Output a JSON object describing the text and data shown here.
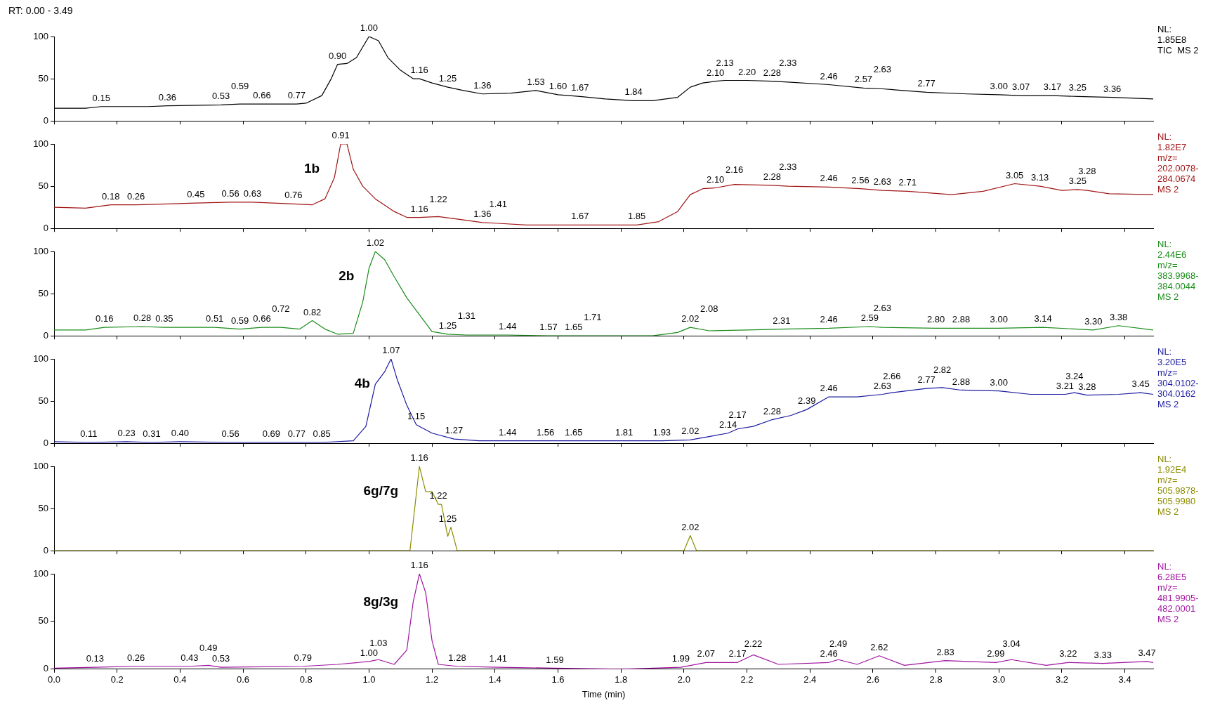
{
  "chart_data": [
    {
      "type": "line",
      "title": "RT: 0.00 - 3.49",
      "xlim": [
        0,
        3.49
      ],
      "xticks": [
        0,
        0.2,
        0.4,
        0.6,
        0.8,
        1,
        1.2,
        1.4,
        1.6,
        1.8,
        2,
        2.2,
        2.4,
        2.6,
        2.8,
        3,
        3.2,
        3.4
      ],
      "ylim": [
        0,
        100
      ],
      "yticks": [
        0,
        50,
        100
      ],
      "tick_labels": "y",
      "x": [
        0,
        0.1,
        0.15,
        0.3,
        0.36,
        0.53,
        0.59,
        0.66,
        0.77,
        0.8,
        0.85,
        0.88,
        0.9,
        0.93,
        0.96,
        1.0,
        1.03,
        1.06,
        1.1,
        1.14,
        1.16,
        1.2,
        1.25,
        1.3,
        1.36,
        1.45,
        1.53,
        1.6,
        1.67,
        1.75,
        1.84,
        1.9,
        1.98,
        2.02,
        2.06,
        2.1,
        2.13,
        2.2,
        2.28,
        2.33,
        2.46,
        2.57,
        2.63,
        2.77,
        2.9,
        3.0,
        3.07,
        3.17,
        3.25,
        3.36,
        3.49
      ],
      "series": [
        {
          "color": "#000000",
          "values": [
            15,
            15,
            17,
            17,
            18,
            19,
            20,
            20,
            20,
            21,
            30,
            50,
            67,
            68,
            75,
            100,
            95,
            75,
            60,
            50,
            50,
            45,
            40,
            36,
            32,
            33,
            36,
            31,
            29,
            26,
            24,
            24,
            28,
            40,
            45,
            47,
            48,
            48,
            47,
            46,
            43,
            39,
            38,
            34,
            32,
            31,
            30,
            30,
            29,
            28,
            26
          ]
        }
      ],
      "annotations": [
        "NL:",
        "1.85E8",
        "TIC  MS 2",
        {
          "text": "0.15",
          "x": 0.15,
          "y": 17
        },
        {
          "text": "0.36",
          "x": 0.36,
          "y": 18
        },
        {
          "text": "0.53",
          "x": 0.53,
          "y": 19
        },
        {
          "text": "0.59",
          "x": 0.59,
          "y": 20
        },
        {
          "text": "0.66",
          "x": 0.66,
          "y": 20
        },
        {
          "text": "0.77",
          "x": 0.77,
          "y": 20
        },
        {
          "text": "0.90",
          "x": 0.9,
          "y": 67
        },
        {
          "text": "1.00",
          "x": 1.0,
          "y": 100
        },
        {
          "text": "1.16",
          "x": 1.16,
          "y": 50
        },
        {
          "text": "1.25",
          "x": 1.25,
          "y": 40
        },
        {
          "text": "1.36",
          "x": 1.36,
          "y": 32
        },
        {
          "text": "1.53",
          "x": 1.53,
          "y": 36
        },
        {
          "text": "1.60",
          "x": 1.6,
          "y": 31
        },
        {
          "text": "1.67",
          "x": 1.67,
          "y": 29
        },
        {
          "text": "1.84",
          "x": 1.84,
          "y": 24
        },
        {
          "text": "2.10",
          "x": 2.1,
          "y": 47
        },
        {
          "text": "2.13",
          "x": 2.13,
          "y": 48
        },
        {
          "text": "2.20",
          "x": 2.2,
          "y": 48
        },
        {
          "text": "2.28",
          "x": 2.28,
          "y": 47
        },
        {
          "text": "2.33",
          "x": 2.33,
          "y": 46
        },
        {
          "text": "2.46",
          "x": 2.46,
          "y": 43
        },
        {
          "text": "2.57",
          "x": 2.57,
          "y": 39
        },
        {
          "text": "2.63",
          "x": 2.63,
          "y": 38
        },
        {
          "text": "2.77",
          "x": 2.77,
          "y": 34
        },
        {
          "text": "3.00",
          "x": 3.0,
          "y": 31
        },
        {
          "text": "3.07",
          "x": 3.07,
          "y": 30
        },
        {
          "text": "3.17",
          "x": 3.17,
          "y": 30
        },
        {
          "text": "3.25",
          "x": 3.25,
          "y": 29
        },
        {
          "text": "3.36",
          "x": 3.36,
          "y": 28
        }
      ]
    },
    {
      "type": "line",
      "xlim": [
        0,
        3.49
      ],
      "xticks": [
        0,
        0.2,
        0.4,
        0.6,
        0.8,
        1,
        1.2,
        1.4,
        1.6,
        1.8,
        2,
        2.2,
        2.4,
        2.6,
        2.8,
        3,
        3.2,
        3.4
      ],
      "ylim": [
        0,
        100
      ],
      "yticks": [
        0,
        50,
        100
      ],
      "tick_labels": "y",
      "x": [
        0,
        0.1,
        0.18,
        0.26,
        0.45,
        0.56,
        0.63,
        0.76,
        0.82,
        0.86,
        0.89,
        0.91,
        0.93,
        0.95,
        0.98,
        1.02,
        1.08,
        1.12,
        1.16,
        1.22,
        1.3,
        1.36,
        1.41,
        1.5,
        1.67,
        1.85,
        1.92,
        1.98,
        2.02,
        2.06,
        2.1,
        2.16,
        2.28,
        2.33,
        2.46,
        2.56,
        2.63,
        2.71,
        2.85,
        2.95,
        3.05,
        3.13,
        3.2,
        3.25,
        3.28,
        3.35,
        3.49
      ],
      "series": [
        {
          "name": "1b",
          "color": "#a01414",
          "values": [
            25,
            24,
            28,
            28,
            30,
            31,
            31,
            29,
            28,
            35,
            60,
            100,
            100,
            70,
            50,
            35,
            20,
            13,
            13,
            14,
            10,
            7,
            6,
            4,
            4,
            4,
            8,
            20,
            40,
            47,
            48,
            52,
            51,
            50,
            49,
            47,
            45,
            44,
            40,
            44,
            53,
            50,
            45,
            46,
            45,
            41,
            40
          ]
        }
      ],
      "annotations": [
        "NL:",
        "1.82E7",
        "m/z=",
        "202.0078-",
        "284.0674",
        "MS 2",
        {
          "text": "0.18",
          "x": 0.18,
          "y": 28
        },
        {
          "text": "0.26",
          "x": 0.26,
          "y": 28
        },
        {
          "text": "0.45",
          "x": 0.45,
          "y": 30
        },
        {
          "text": "0.56",
          "x": 0.56,
          "y": 31
        },
        {
          "text": "0.63",
          "x": 0.63,
          "y": 31
        },
        {
          "text": "0.76",
          "x": 0.76,
          "y": 29
        },
        {
          "text": "0.91",
          "x": 0.91,
          "y": 100
        },
        {
          "text": "1.16",
          "x": 1.16,
          "y": 13
        },
        {
          "text": "1.22",
          "x": 1.22,
          "y": 14
        },
        {
          "text": "1.36",
          "x": 1.36,
          "y": 7
        },
        {
          "text": "1.41",
          "x": 1.41,
          "y": 6
        },
        {
          "text": "1.67",
          "x": 1.67,
          "y": 4
        },
        {
          "text": "1.85",
          "x": 1.85,
          "y": 4
        },
        {
          "text": "2.10",
          "x": 2.1,
          "y": 48
        },
        {
          "text": "2.16",
          "x": 2.16,
          "y": 52
        },
        {
          "text": "2.28",
          "x": 2.28,
          "y": 51
        },
        {
          "text": "2.33",
          "x": 2.33,
          "y": 50
        },
        {
          "text": "2.46",
          "x": 2.46,
          "y": 49
        },
        {
          "text": "2.56",
          "x": 2.56,
          "y": 47
        },
        {
          "text": "2.63",
          "x": 2.63,
          "y": 45
        },
        {
          "text": "2.71",
          "x": 2.71,
          "y": 44
        },
        {
          "text": "3.05",
          "x": 3.05,
          "y": 53
        },
        {
          "text": "3.13",
          "x": 3.13,
          "y": 50
        },
        {
          "text": "3.25",
          "x": 3.25,
          "y": 46
        },
        {
          "text": "3.28",
          "x": 3.28,
          "y": 45
        }
      ]
    },
    {
      "type": "line",
      "xlim": [
        0,
        3.49
      ],
      "xticks": [
        0,
        0.2,
        0.4,
        0.6,
        0.8,
        1,
        1.2,
        1.4,
        1.6,
        1.8,
        2,
        2.2,
        2.4,
        2.6,
        2.8,
        3,
        3.2,
        3.4
      ],
      "ylim": [
        0,
        100
      ],
      "yticks": [
        0,
        50,
        100
      ],
      "tick_labels": "y",
      "x": [
        0,
        0.1,
        0.16,
        0.28,
        0.35,
        0.51,
        0.59,
        0.66,
        0.72,
        0.78,
        0.82,
        0.86,
        0.9,
        0.95,
        0.98,
        1.0,
        1.02,
        1.05,
        1.08,
        1.12,
        1.16,
        1.2,
        1.25,
        1.31,
        1.44,
        1.57,
        1.65,
        1.71,
        1.9,
        1.98,
        2.02,
        2.08,
        2.2,
        2.31,
        2.46,
        2.59,
        2.63,
        2.8,
        2.88,
        3.0,
        3.14,
        3.3,
        3.38,
        3.49
      ],
      "series": [
        {
          "name": "2b",
          "color": "#1a8c1a",
          "values": [
            7,
            7,
            10,
            11,
            10,
            10,
            8,
            10,
            10,
            8,
            18,
            8,
            2,
            3,
            40,
            80,
            100,
            90,
            70,
            45,
            25,
            5,
            2,
            1,
            1,
            0,
            0,
            0,
            0,
            4,
            10,
            6,
            7,
            8,
            9,
            11,
            10,
            9,
            9,
            9,
            10,
            7,
            12,
            7
          ]
        }
      ],
      "annotations": [
        "NL:",
        "2.44E6",
        "m/z=",
        "383.9968-",
        "384.0044",
        "MS 2",
        {
          "text": "0.16",
          "x": 0.16,
          "y": 10
        },
        {
          "text": "0.28",
          "x": 0.28,
          "y": 11
        },
        {
          "text": "0.35",
          "x": 0.35,
          "y": 10
        },
        {
          "text": "0.51",
          "x": 0.51,
          "y": 10
        },
        {
          "text": "0.59",
          "x": 0.59,
          "y": 8
        },
        {
          "text": "0.66",
          "x": 0.66,
          "y": 10
        },
        {
          "text": "0.72",
          "x": 0.72,
          "y": 10
        },
        {
          "text": "0.82",
          "x": 0.82,
          "y": 18
        },
        {
          "text": "1.02",
          "x": 1.02,
          "y": 100
        },
        {
          "text": "1.25",
          "x": 1.25,
          "y": 2
        },
        {
          "text": "1.31",
          "x": 1.31,
          "y": 1
        },
        {
          "text": "1.44",
          "x": 1.44,
          "y": 1
        },
        {
          "text": "1.57",
          "x": 1.57,
          "y": 0
        },
        {
          "text": "1.65",
          "x": 1.65,
          "y": 0
        },
        {
          "text": "1.71",
          "x": 1.71,
          "y": 0
        },
        {
          "text": "2.02",
          "x": 2.02,
          "y": 10
        },
        {
          "text": "2.08",
          "x": 2.08,
          "y": 6
        },
        {
          "text": "2.31",
          "x": 2.31,
          "y": 8
        },
        {
          "text": "2.46",
          "x": 2.46,
          "y": 9
        },
        {
          "text": "2.59",
          "x": 2.59,
          "y": 11
        },
        {
          "text": "2.63",
          "x": 2.63,
          "y": 10
        },
        {
          "text": "2.80",
          "x": 2.8,
          "y": 9
        },
        {
          "text": "2.88",
          "x": 2.88,
          "y": 9
        },
        {
          "text": "3.00",
          "x": 3.0,
          "y": 9
        },
        {
          "text": "3.14",
          "x": 3.14,
          "y": 10
        },
        {
          "text": "3.30",
          "x": 3.3,
          "y": 7
        },
        {
          "text": "3.38",
          "x": 3.38,
          "y": 12
        }
      ]
    },
    {
      "type": "line",
      "xlim": [
        0,
        3.49
      ],
      "xticks": [
        0,
        0.2,
        0.4,
        0.6,
        0.8,
        1,
        1.2,
        1.4,
        1.6,
        1.8,
        2,
        2.2,
        2.4,
        2.6,
        2.8,
        3,
        3.2,
        3.4
      ],
      "ylim": [
        0,
        100
      ],
      "yticks": [
        0,
        50,
        100
      ],
      "tick_labels": "y",
      "x": [
        0,
        0.11,
        0.23,
        0.31,
        0.4,
        0.56,
        0.69,
        0.77,
        0.85,
        0.95,
        0.99,
        1.02,
        1.05,
        1.07,
        1.09,
        1.12,
        1.15,
        1.2,
        1.27,
        1.35,
        1.44,
        1.56,
        1.65,
        1.81,
        1.93,
        2.02,
        2.08,
        2.14,
        2.17,
        2.22,
        2.28,
        2.34,
        2.39,
        2.46,
        2.55,
        2.63,
        2.66,
        2.77,
        2.82,
        2.88,
        3.0,
        3.1,
        3.21,
        3.24,
        3.28,
        3.38,
        3.45,
        3.49
      ],
      "series": [
        {
          "name": "4b",
          "color": "#1a1aa0",
          "values": [
            2,
            1,
            2,
            1,
            2,
            1,
            1,
            1,
            1,
            3,
            20,
            70,
            85,
            100,
            75,
            45,
            22,
            12,
            5,
            3,
            3,
            3,
            3,
            3,
            3,
            4,
            8,
            12,
            17,
            20,
            28,
            33,
            40,
            55,
            55,
            58,
            60,
            65,
            66,
            63,
            62,
            58,
            58,
            60,
            57,
            58,
            60,
            58
          ]
        }
      ],
      "annotations": [
        "NL:",
        "3.20E5",
        "m/z=",
        "304.0102-",
        "304.0162",
        "MS 2",
        {
          "text": "0.11",
          "x": 0.11,
          "y": 1
        },
        {
          "text": "0.23",
          "x": 0.23,
          "y": 2
        },
        {
          "text": "0.31",
          "x": 0.31,
          "y": 1
        },
        {
          "text": "0.40",
          "x": 0.4,
          "y": 2
        },
        {
          "text": "0.56",
          "x": 0.56,
          "y": 1
        },
        {
          "text": "0.69",
          "x": 0.69,
          "y": 1
        },
        {
          "text": "0.77",
          "x": 0.77,
          "y": 1
        },
        {
          "text": "0.85",
          "x": 0.85,
          "y": 1
        },
        {
          "text": "1.07",
          "x": 1.07,
          "y": 100
        },
        {
          "text": "1.15",
          "x": 1.15,
          "y": 22
        },
        {
          "text": "1.27",
          "x": 1.27,
          "y": 5
        },
        {
          "text": "1.44",
          "x": 1.44,
          "y": 3
        },
        {
          "text": "1.56",
          "x": 1.56,
          "y": 3
        },
        {
          "text": "1.65",
          "x": 1.65,
          "y": 3
        },
        {
          "text": "1.81",
          "x": 1.81,
          "y": 3
        },
        {
          "text": "1.93",
          "x": 1.93,
          "y": 3
        },
        {
          "text": "2.02",
          "x": 2.02,
          "y": 4
        },
        {
          "text": "2.14",
          "x": 2.14,
          "y": 12
        },
        {
          "text": "2.17",
          "x": 2.17,
          "y": 17
        },
        {
          "text": "2.28",
          "x": 2.28,
          "y": 28
        },
        {
          "text": "2.39",
          "x": 2.39,
          "y": 40
        },
        {
          "text": "2.46",
          "x": 2.46,
          "y": 55
        },
        {
          "text": "2.63",
          "x": 2.63,
          "y": 58
        },
        {
          "text": "2.66",
          "x": 2.66,
          "y": 60
        },
        {
          "text": "2.77",
          "x": 2.77,
          "y": 65
        },
        {
          "text": "2.82",
          "x": 2.82,
          "y": 66
        },
        {
          "text": "2.88",
          "x": 2.88,
          "y": 63
        },
        {
          "text": "3.00",
          "x": 3.0,
          "y": 62
        },
        {
          "text": "3.21",
          "x": 3.21,
          "y": 58
        },
        {
          "text": "3.24",
          "x": 3.24,
          "y": 60
        },
        {
          "text": "3.28",
          "x": 3.28,
          "y": 57
        },
        {
          "text": "3.45",
          "x": 3.45,
          "y": 60
        }
      ]
    },
    {
      "type": "line",
      "xlim": [
        0,
        3.49
      ],
      "xticks": [
        0,
        0.2,
        0.4,
        0.6,
        0.8,
        1,
        1.2,
        1.4,
        1.6,
        1.8,
        2,
        2.2,
        2.4,
        2.6,
        2.8,
        3,
        3.2,
        3.4
      ],
      "ylim": [
        0,
        100
      ],
      "yticks": [
        0,
        50,
        100
      ],
      "tick_labels": "y",
      "x": [
        0,
        1.13,
        1.16,
        1.18,
        1.2,
        1.22,
        1.23,
        1.25,
        1.26,
        1.28,
        2.0,
        2.02,
        2.04,
        3.49
      ],
      "series": [
        {
          "name": "6g/7g",
          "color": "#8c8c00",
          "values": [
            0,
            0,
            100,
            70,
            70,
            55,
            55,
            17,
            28,
            0,
            0,
            18,
            0,
            0
          ]
        }
      ],
      "annotations": [
        "NL:",
        "1.92E4",
        "m/z=",
        "505.9878-",
        "505.9980",
        "MS 2",
        {
          "text": "1.16",
          "x": 1.16,
          "y": 100
        },
        {
          "text": "1.22",
          "x": 1.22,
          "y": 55
        },
        {
          "text": "1.25",
          "x": 1.25,
          "y": 28
        },
        {
          "text": "2.02",
          "x": 2.02,
          "y": 18
        }
      ]
    },
    {
      "type": "line",
      "xlabel": "Time (min)",
      "xlim": [
        0,
        3.49
      ],
      "xticks": [
        {
          "value": 0,
          "label": "0.0"
        },
        0.2,
        0.4,
        0.6,
        0.8,
        {
          "value": 1,
          "label": "1.0"
        },
        1.2,
        1.4,
        1.6,
        1.8,
        {
          "value": 2,
          "label": "2.0"
        },
        2.2,
        2.4,
        2.6,
        2.8,
        {
          "value": 3,
          "label": "3.0"
        },
        3.2,
        3.4
      ],
      "ylim": [
        0,
        100
      ],
      "yticks": [
        0,
        50,
        100
      ],
      "x": [
        0,
        0.13,
        0.26,
        0.43,
        0.49,
        0.53,
        0.79,
        0.9,
        1.0,
        1.03,
        1.08,
        1.12,
        1.14,
        1.16,
        1.18,
        1.2,
        1.22,
        1.28,
        1.41,
        1.59,
        1.8,
        1.99,
        2.07,
        2.17,
        2.22,
        2.3,
        2.46,
        2.49,
        2.55,
        2.62,
        2.7,
        2.83,
        2.99,
        3.04,
        3.15,
        3.22,
        3.33,
        3.47,
        3.49
      ],
      "series": [
        {
          "name": "8g/3g",
          "color": "#a014a0",
          "values": [
            1,
            2,
            3,
            3,
            4,
            2,
            3,
            5,
            8,
            10,
            5,
            20,
            70,
            100,
            80,
            30,
            5,
            3,
            2,
            1,
            0,
            2,
            7,
            7,
            15,
            5,
            7,
            10,
            5,
            14,
            4,
            9,
            7,
            10,
            4,
            7,
            6,
            8,
            7
          ]
        }
      ],
      "annotations": [
        "NL:",
        "6.28E5",
        "m/z=",
        "481.9905-",
        "482.0001",
        "MS 2",
        {
          "text": "0.13",
          "x": 0.13,
          "y": 2
        },
        {
          "text": "0.26",
          "x": 0.26,
          "y": 3
        },
        {
          "text": "0.43",
          "x": 0.43,
          "y": 3
        },
        {
          "text": "0.49",
          "x": 0.49,
          "y": 4
        },
        {
          "text": "0.53",
          "x": 0.53,
          "y": 2
        },
        {
          "text": "0.79",
          "x": 0.79,
          "y": 3
        },
        {
          "text": "1.00",
          "x": 1.0,
          "y": 8
        },
        {
          "text": "1.03",
          "x": 1.03,
          "y": 10
        },
        {
          "text": "1.16",
          "x": 1.16,
          "y": 100
        },
        {
          "text": "1.28",
          "x": 1.28,
          "y": 3
        },
        {
          "text": "1.41",
          "x": 1.41,
          "y": 2
        },
        {
          "text": "1.59",
          "x": 1.59,
          "y": 1
        },
        {
          "text": "1.99",
          "x": 1.99,
          "y": 2
        },
        {
          "text": "2.07",
          "x": 2.07,
          "y": 7
        },
        {
          "text": "2.17",
          "x": 2.17,
          "y": 7
        },
        {
          "text": "2.22",
          "x": 2.22,
          "y": 15
        },
        {
          "text": "2.46",
          "x": 2.46,
          "y": 7
        },
        {
          "text": "2.49",
          "x": 2.49,
          "y": 10
        },
        {
          "text": "2.62",
          "x": 2.62,
          "y": 14
        },
        {
          "text": "2.83",
          "x": 2.83,
          "y": 9
        },
        {
          "text": "2.99",
          "x": 2.99,
          "y": 7
        },
        {
          "text": "3.04",
          "x": 3.04,
          "y": 10
        },
        {
          "text": "3.22",
          "x": 3.22,
          "y": 7
        },
        {
          "text": "3.33",
          "x": 3.33,
          "y": 6
        },
        {
          "text": "3.47",
          "x": 3.47,
          "y": 8
        }
      ]
    }
  ]
}
